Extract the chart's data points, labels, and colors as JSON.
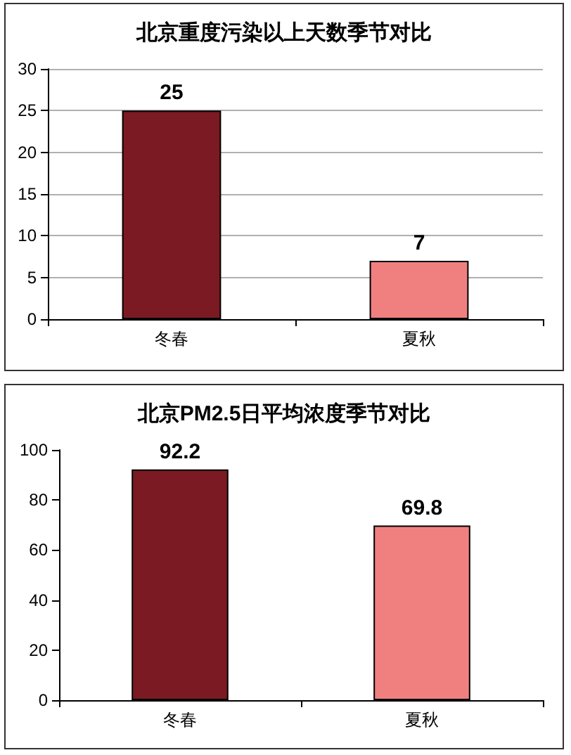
{
  "chart_data": [
    {
      "type": "bar",
      "title": "北京重度污染以上天数季节对比",
      "categories": [
        "冬春",
        "夏秋"
      ],
      "values": [
        25,
        7
      ],
      "colors": [
        "#7b1a22",
        "#f08080"
      ],
      "ylim": [
        0,
        30
      ],
      "yticks": [
        0,
        5,
        10,
        15,
        20,
        25,
        30
      ],
      "grid": "y",
      "data_labels": true
    },
    {
      "type": "bar",
      "title": "北京PM2.5日平均浓度季节对比",
      "categories": [
        "冬春",
        "夏秋"
      ],
      "values": [
        92.2,
        69.8
      ],
      "colors": [
        "#7b1a22",
        "#f08080"
      ],
      "ylim": [
        0,
        100
      ],
      "yticks": [
        0,
        20,
        40,
        60,
        80,
        100
      ],
      "grid": false,
      "data_labels": true
    }
  ]
}
